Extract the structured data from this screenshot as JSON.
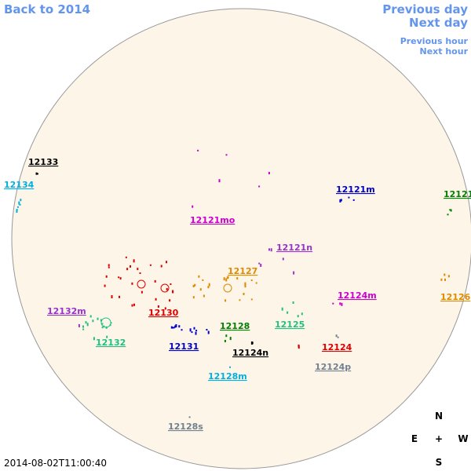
{
  "nav": {
    "back": "Back to 2014",
    "previous_day": "Previous day",
    "next_day": "Next day",
    "previous_hour": "Previous hour",
    "next_hour": "Next hour"
  },
  "regions": [
    {
      "label": "12133",
      "color": "#000000"
    },
    {
      "label": "12134",
      "color": "#00b0e0"
    },
    {
      "label": "12121m",
      "color": "#0000cc"
    },
    {
      "label": "12121",
      "color": "#008000"
    },
    {
      "label": "12121mo",
      "color": "#cc00cc"
    },
    {
      "label": "12121n",
      "color": "#9933cc"
    },
    {
      "label": "12127",
      "color": "#e08a00"
    },
    {
      "label": "12124m",
      "color": "#cc00cc"
    },
    {
      "label": "12126",
      "color": "#e08a00"
    },
    {
      "label": "12132m",
      "color": "#9933cc"
    },
    {
      "label": "12130",
      "color": "#dd0000"
    },
    {
      "label": "12128",
      "color": "#008000"
    },
    {
      "label": "12125",
      "color": "#20c080"
    },
    {
      "label": "12132",
      "color": "#20c080"
    },
    {
      "label": "12131",
      "color": "#0000cc"
    },
    {
      "label": "12124",
      "color": "#dd0000"
    },
    {
      "label": "12124n",
      "color": "#000000"
    },
    {
      "label": "12124p",
      "color": "#708090"
    },
    {
      "label": "12128m",
      "color": "#00b0e0"
    },
    {
      "label": "12128s",
      "color": "#708090"
    }
  ],
  "compass": {
    "north": "N",
    "east": "E",
    "center": "+",
    "west": "W",
    "south": "S"
  },
  "timestamp": "2014-08-02T11:00:40"
}
